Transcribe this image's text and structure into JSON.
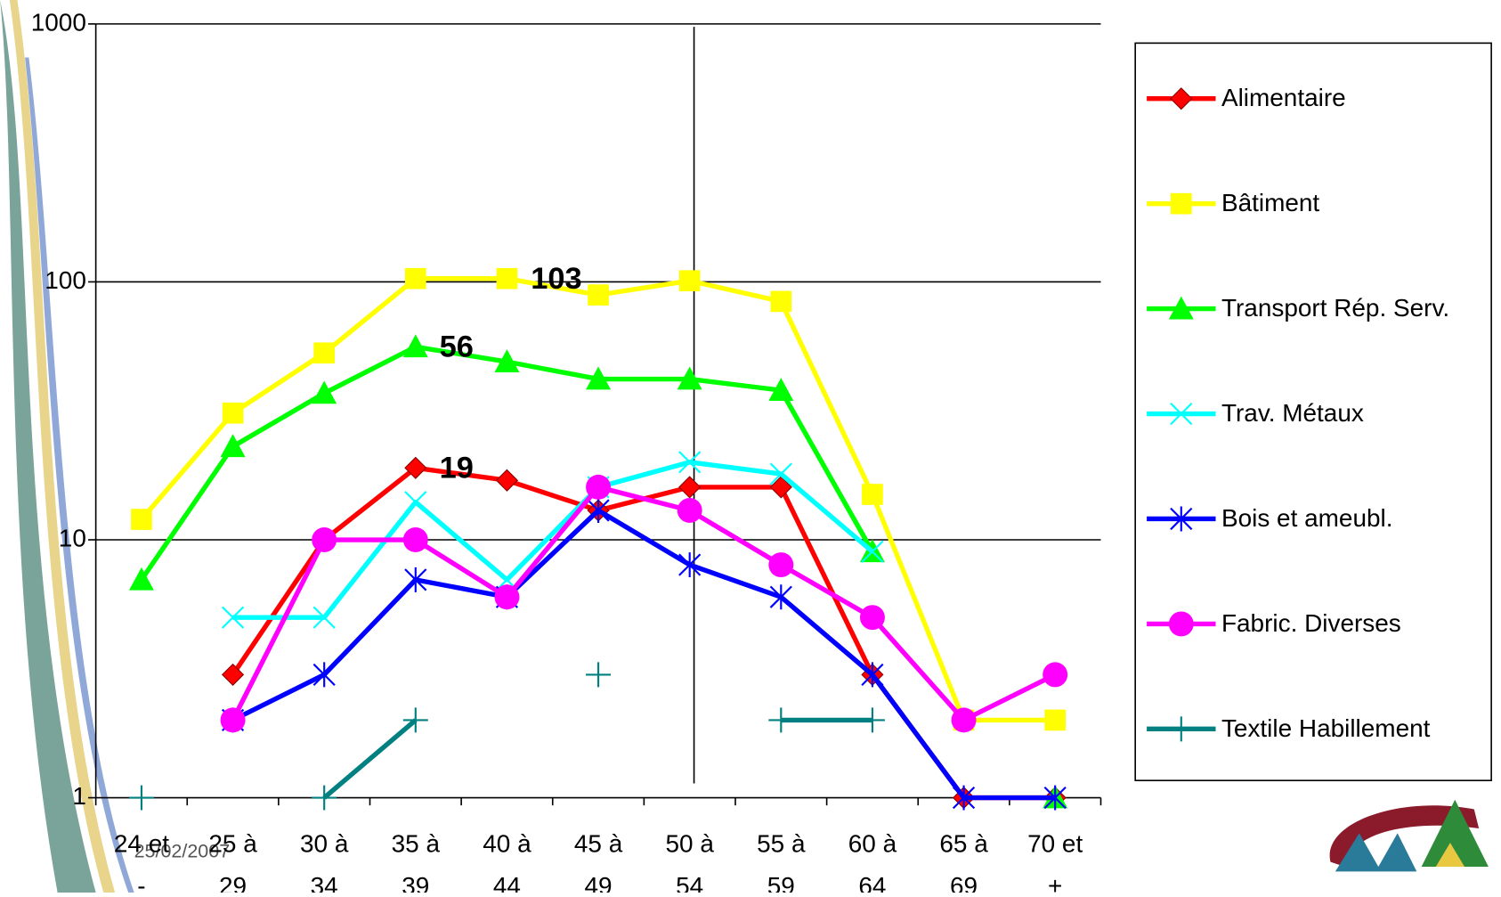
{
  "chart_data": {
    "type": "line",
    "log_scale": true,
    "grid": true,
    "legend": "right",
    "date": "25/02/2007",
    "categories": [
      [
        "24 et",
        "-"
      ],
      [
        "25 à",
        "29"
      ],
      [
        "30 à",
        "34"
      ],
      [
        "35 à",
        "39"
      ],
      [
        "40 à",
        "44"
      ],
      [
        "45 à",
        "49"
      ],
      [
        "50 à",
        "54"
      ],
      [
        "55 à",
        "59"
      ],
      [
        "60 à",
        "64"
      ],
      [
        "65 à",
        "69"
      ],
      [
        "70 et",
        "+"
      ]
    ],
    "ylim": [
      1,
      1000
    ],
    "yticks": [
      1,
      10,
      100,
      1000
    ],
    "series": [
      {
        "name": "Alimentaire",
        "color": "#ff0000",
        "marker": "diamond",
        "values": [
          null,
          3,
          10,
          19,
          17,
          13,
          16,
          16,
          3,
          1,
          1
        ],
        "value_labels": [
          null,
          null,
          null,
          "19",
          null,
          null,
          null,
          null,
          null,
          null,
          null
        ]
      },
      {
        "name": "Bâtiment",
        "color": "#ffff00",
        "marker": "square",
        "values": [
          12,
          31,
          53,
          103,
          103,
          89,
          101,
          84,
          15,
          2,
          2
        ],
        "value_labels": [
          null,
          null,
          null,
          null,
          "103",
          null,
          null,
          null,
          null,
          null,
          null
        ]
      },
      {
        "name": "Transport Rép. Serv.",
        "color": "#00ff00",
        "marker": "triangle",
        "values": [
          7,
          23,
          37,
          56,
          49,
          42,
          42,
          38,
          9,
          null,
          1
        ],
        "value_labels": [
          null,
          null,
          null,
          "56",
          null,
          null,
          null,
          null,
          null,
          null,
          null
        ]
      },
      {
        "name": "Trav. Métaux",
        "color": "#00ffff",
        "marker": "x",
        "values": [
          null,
          5,
          5,
          14,
          7,
          16,
          20,
          18,
          9,
          null,
          null
        ]
      },
      {
        "name": "Bois et ameubl.",
        "color": "#0000ff",
        "marker": "star",
        "values": [
          null,
          2,
          3,
          7,
          6,
          13,
          8,
          6,
          3,
          1,
          1
        ]
      },
      {
        "name": "Fabric. Diverses",
        "color": "#ff00ff",
        "marker": "circle",
        "values": [
          null,
          2,
          10,
          10,
          6,
          16,
          13,
          8,
          5,
          2,
          3
        ]
      },
      {
        "name": "Textile Habillement",
        "color": "#008080",
        "marker": "plus",
        "values": [
          1,
          null,
          1,
          2,
          null,
          3,
          null,
          2,
          2,
          null,
          null
        ]
      }
    ]
  }
}
